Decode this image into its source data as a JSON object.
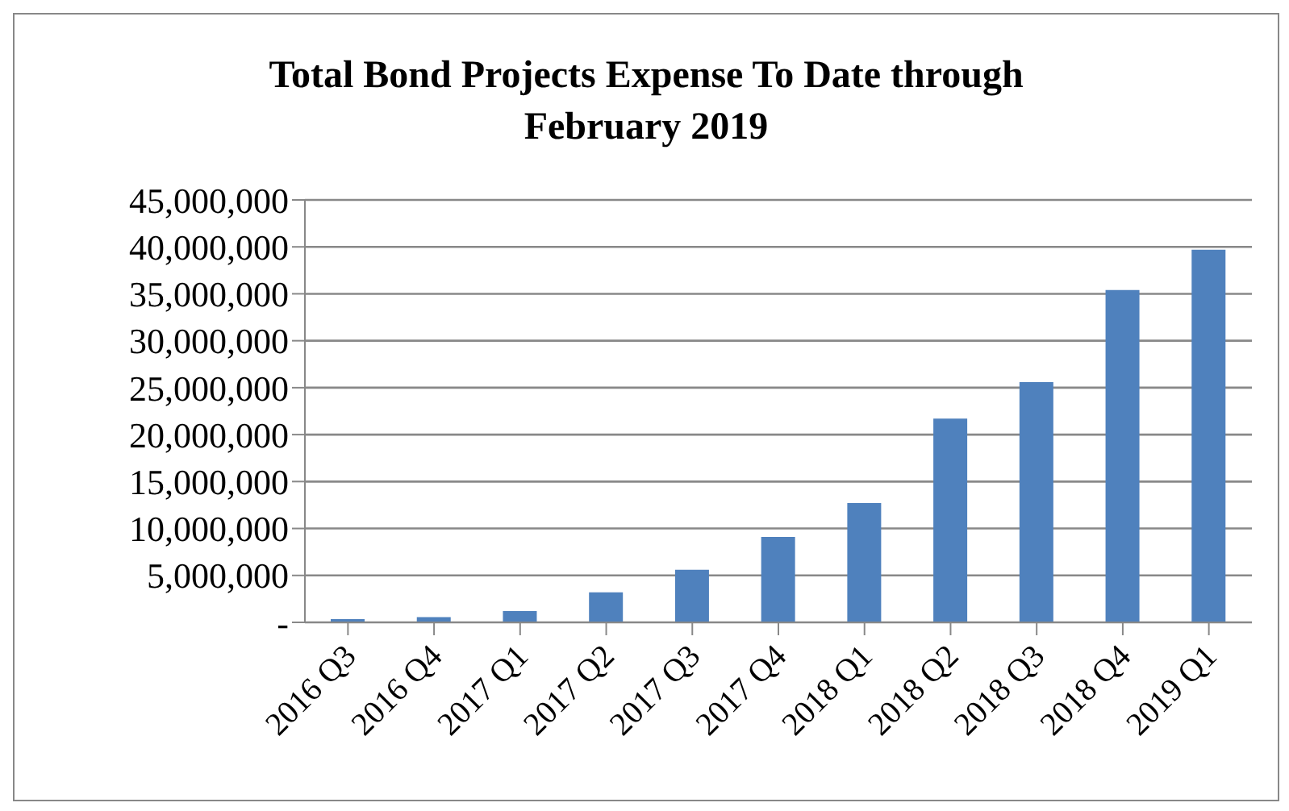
{
  "chart_data": {
    "type": "bar",
    "title": "Total Bond Projects Expense To Date through February 2019",
    "categories": [
      "2016 Q3",
      "2016 Q4",
      "2017 Q1",
      "2017 Q2",
      "2017 Q3",
      "2017 Q4",
      "2018 Q1",
      "2018 Q2",
      "2018 Q3",
      "2018 Q4",
      "2019 Q1"
    ],
    "values": [
      350000,
      550000,
      1200000,
      3200000,
      5600000,
      9100000,
      12700000,
      21700000,
      25600000,
      35400000,
      39700000
    ],
    "color": "#4f81bd",
    "ylim": [
      0,
      45000000
    ],
    "yticks": [
      {
        "value": 0,
        "label": "-"
      },
      {
        "value": 5000000,
        "label": "5,000,000"
      },
      {
        "value": 10000000,
        "label": "10,000,000"
      },
      {
        "value": 15000000,
        "label": "15,000,000"
      },
      {
        "value": 20000000,
        "label": "20,000,000"
      },
      {
        "value": 25000000,
        "label": "25,000,000"
      },
      {
        "value": 30000000,
        "label": "30,000,000"
      },
      {
        "value": 35000000,
        "label": "35,000,000"
      },
      {
        "value": 40000000,
        "label": "40,000,000"
      },
      {
        "value": 45000000,
        "label": "45,000,000"
      }
    ],
    "grid": "y",
    "legend": false
  }
}
